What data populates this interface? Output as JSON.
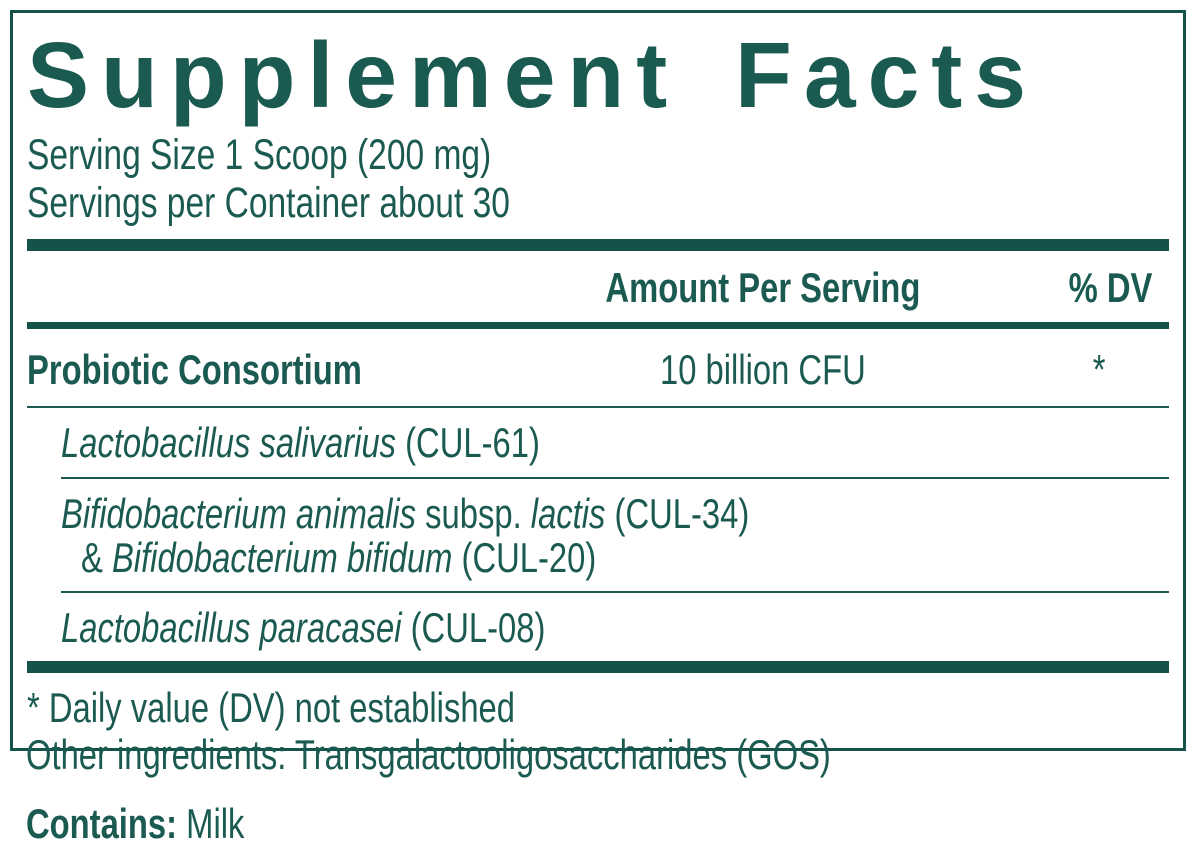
{
  "colors": {
    "teal": "#14524a",
    "teal_text": "#1b5a51",
    "background": "#ffffff"
  },
  "label": {
    "title": "Supplement Facts",
    "serving_size": "Serving Size 1 Scoop (200 mg)",
    "servings_per_container": "Servings per Container about 30",
    "columns": {
      "amount_header": "Amount Per Serving",
      "dv_header": "% DV"
    },
    "main_row": {
      "name": "Probiotic Consortium",
      "amount": "10 billion CFU",
      "dv": "*"
    },
    "sub_rows": {
      "salivarius": {
        "species": "Lactobacillus salivarius",
        "code": " (CUL-61)"
      },
      "bifido_line1": {
        "species1": "Bifidobacterium animalis",
        "mid": " subsp. ",
        "species2": "lactis",
        "code": " (CUL-34)"
      },
      "bifido_line2": {
        "amp": "& ",
        "species": "Bifidobacterium bifidum",
        "code": " (CUL-20)"
      },
      "paracasei": {
        "species": "Lactobacillus paracasei",
        "code": " (CUL-08)"
      }
    },
    "footnote": "* Daily value (DV) not established"
  },
  "below": {
    "other_ingredients": "Other ingredients: Transgalactooligosaccharides (GOS)",
    "contains_label": "Contains:",
    "contains_value": " Milk"
  }
}
